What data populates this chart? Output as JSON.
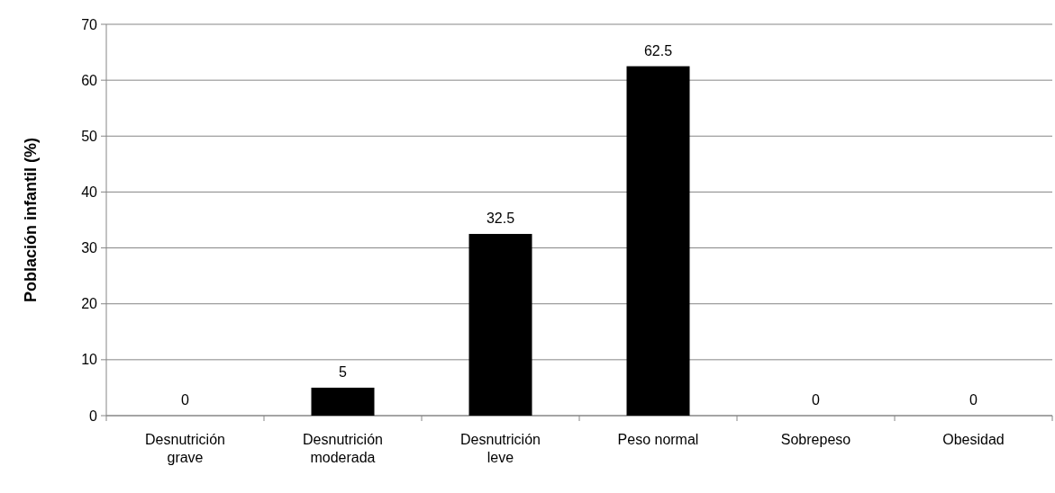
{
  "chart_data": {
    "type": "bar",
    "ylabel": "Población infantil (%)",
    "categories": [
      "Desnutrición grave",
      "Desnutrición moderada",
      "Desnutrición leve",
      "Peso normal",
      "Sobrepeso",
      "Obesidad"
    ],
    "values": [
      0,
      5,
      32.5,
      62.5,
      0,
      0
    ],
    "color": "#000000",
    "ylim": [
      0,
      70
    ],
    "yticks": [
      0,
      10,
      20,
      30,
      40,
      50,
      60,
      70
    ],
    "grid": "y",
    "data_labels": true
  }
}
